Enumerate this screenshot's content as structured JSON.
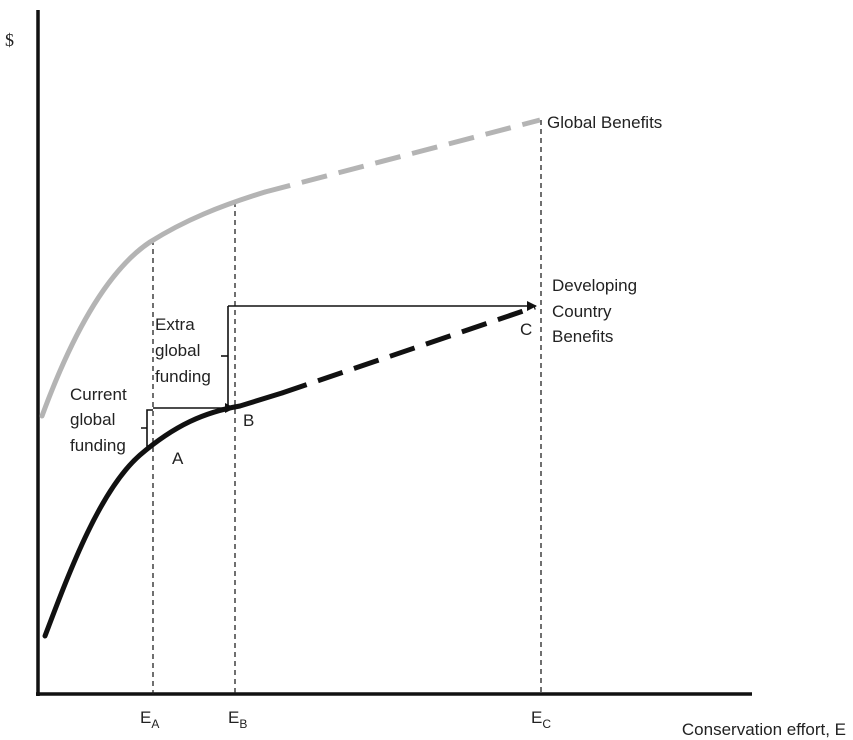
{
  "diagram": {
    "y_axis_label": "$",
    "x_axis_label": "Conservation effort, E",
    "global_curve_label": "Global Benefits",
    "developing_curve_label": [
      "Developing",
      "Country",
      "Benefits"
    ],
    "current_funding_label": [
      "Current",
      "global",
      "funding"
    ],
    "extra_funding_label": [
      "Extra",
      "global",
      "funding"
    ],
    "point_labels": {
      "a": "A",
      "b": "B",
      "c": "C"
    },
    "tick_labels": [
      {
        "main": "E",
        "sub": "A"
      },
      {
        "main": "E",
        "sub": "B"
      },
      {
        "main": "E",
        "sub": "C"
      }
    ],
    "colors": {
      "axis": "#111111",
      "global_curve": "#b4b4b4",
      "developing_curve": "#111111",
      "guide_lines": "#222222"
    }
  }
}
